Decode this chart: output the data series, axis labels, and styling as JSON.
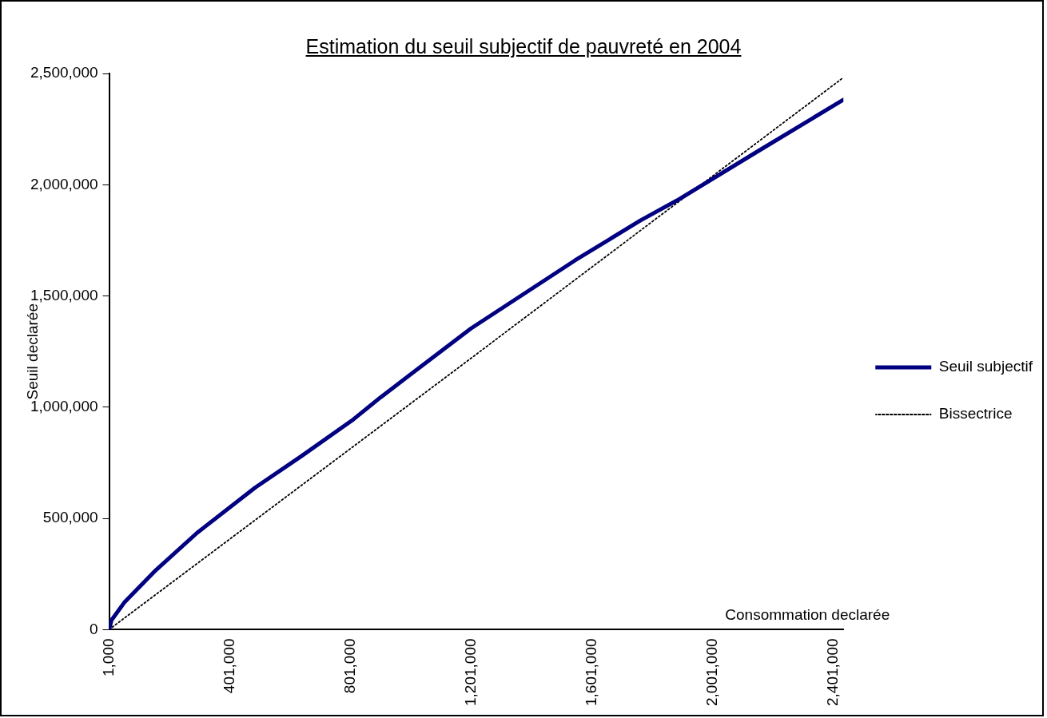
{
  "chart_data": {
    "type": "line",
    "title": "Estimation du seuil subjectif de pauvreté en 2004",
    "xlabel": "Consommation declarée",
    "ylabel": "Seuil declarée",
    "series": [
      {
        "name": "Seuil subjectif",
        "color": "#000080",
        "line_style": "solid",
        "x": [
          1000,
          8900,
          52800,
          156000,
          293000,
          485000,
          640000,
          811000,
          899000,
          1200000,
          1546000,
          1761000,
          1891000,
          2150000,
          2434000
        ],
        "values": [
          0,
          43000,
          125000,
          268000,
          436000,
          639000,
          782000,
          946000,
          1043000,
          1354000,
          1661000,
          1839000,
          1936000,
          2150000,
          2382000
        ]
      },
      {
        "name": "Bissectrice",
        "color": "#000000",
        "line_style": "dotted",
        "x": [
          1000,
          1201000,
          2434000
        ],
        "values": [
          1000,
          1221000,
          2482000
        ]
      }
    ],
    "xlim": [
      1000,
      2434000
    ],
    "xticks": [
      {
        "value": 1000,
        "label": "1,000"
      },
      {
        "value": 401000,
        "label": "401,000"
      },
      {
        "value": 801000,
        "label": "801,000"
      },
      {
        "value": 1201000,
        "label": "1,201,000"
      },
      {
        "value": 1601000,
        "label": "1,601,000"
      },
      {
        "value": 2001000,
        "label": "2,001,000"
      },
      {
        "value": 2401000,
        "label": "2,401,000"
      }
    ],
    "ylim": [
      0,
      2500000
    ],
    "yticks": [
      0,
      {
        "value": 500000,
        "label": "500,000"
      },
      {
        "value": 1000000,
        "label": "1,000,000"
      },
      {
        "value": 1500000,
        "label": "1,500,000"
      },
      {
        "value": 2000000,
        "label": "2,000,000"
      },
      {
        "value": 2500000,
        "label": "2,500,000"
      }
    ],
    "grid": false,
    "legend": "right",
    "marker": "none"
  }
}
